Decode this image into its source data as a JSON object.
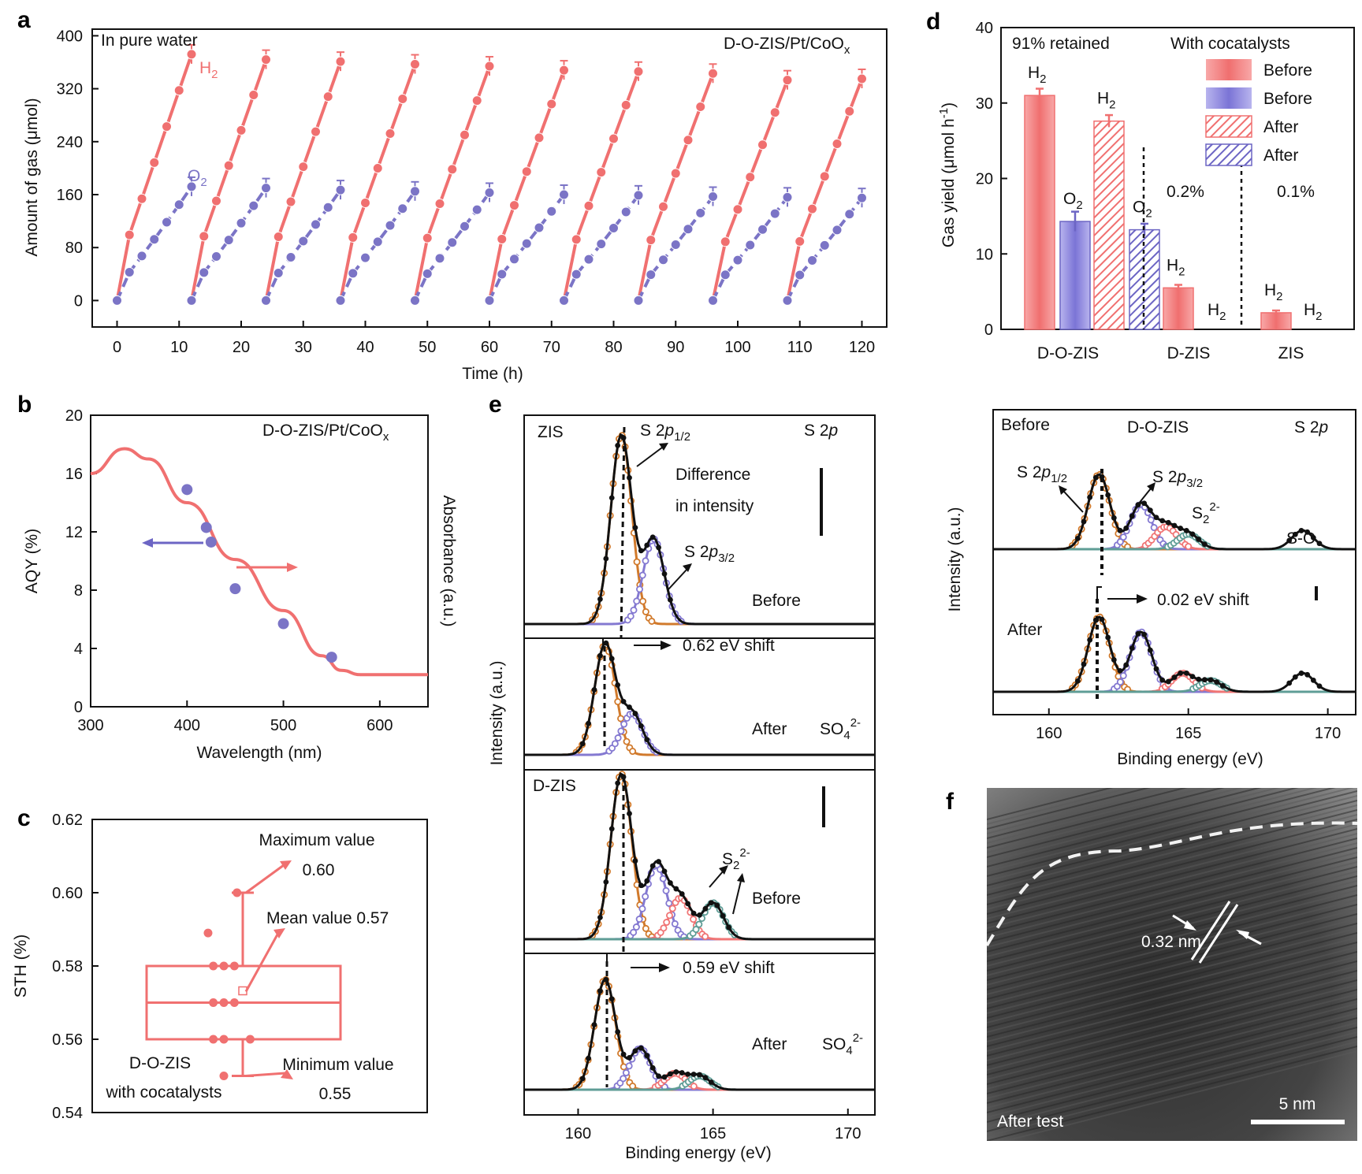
{
  "panel_labels": {
    "a": "a",
    "b": "b",
    "c": "c",
    "d": "d",
    "e": "e",
    "f": "f"
  },
  "colors": {
    "h2": "#f07070",
    "o2": "#7b74c6",
    "fit_s12": "#d17a2c",
    "fit_s32": "#8479d1",
    "fit_s22": "#f07575",
    "fit_so": "#5f9d96",
    "raw": "#111111",
    "tem_bg": "#3a3a3a"
  },
  "chart_data": [
    {
      "id": "a",
      "type": "line",
      "title_left": "In pure water",
      "title_right": "D-O-ZIS/Pt/CoO",
      "title_right_sub": "x",
      "xlabel": "Time (h)",
      "ylabel": "Amount of gas (μmol)",
      "xlim": [
        -4,
        124
      ],
      "ylim": [
        -40,
        410
      ],
      "xticks": [
        0,
        10,
        20,
        30,
        40,
        50,
        60,
        70,
        80,
        90,
        100,
        110,
        120
      ],
      "yticks": [
        0,
        80,
        160,
        240,
        320,
        400
      ],
      "cycle_hours": 12,
      "cycles": 10,
      "cycle_x": [
        0,
        2,
        4,
        6,
        8,
        10,
        12
      ],
      "series": [
        {
          "name": "H",
          "sub": "2",
          "key": "h2",
          "style": "solid",
          "end_values": [
            372,
            364,
            361,
            357,
            354,
            348,
            346,
            343,
            333,
            335
          ]
        },
        {
          "name": "O",
          "sub": "2",
          "key": "o2",
          "style": "dashed",
          "end_values": [
            172,
            170,
            167,
            165,
            163,
            160,
            159,
            157,
            156,
            155
          ]
        }
      ]
    },
    {
      "id": "b",
      "type": "scatter+line",
      "title": "D-O-ZIS/Pt/CoO",
      "title_sub": "x",
      "xlabel": "Wavelength (nm)",
      "ylabel_left": "AQY (%)",
      "ylabel_right": "Absorbance (a.u.)",
      "xlim": [
        300,
        650
      ],
      "ylim": [
        0,
        20
      ],
      "xticks": [
        300,
        400,
        500,
        600
      ],
      "yticks": [
        0,
        4,
        8,
        12,
        16,
        20
      ],
      "points": {
        "x": [
          400,
          420,
          425,
          450,
          500,
          550
        ],
        "y": [
          14.9,
          12.3,
          11.3,
          8.1,
          5.7,
          3.4
        ]
      },
      "absorbance_curve": {
        "x": [
          300,
          335,
          360,
          400,
          450,
          500,
          540,
          560,
          580,
          600,
          650
        ],
        "y": [
          16,
          17.7,
          17,
          14,
          10.1,
          6.6,
          3.5,
          2.5,
          2.2,
          2.2,
          2.2
        ]
      }
    },
    {
      "id": "c",
      "type": "box",
      "ylabel": "STH (%)",
      "ylim": [
        0.54,
        0.62
      ],
      "yticks": [
        0.54,
        0.56,
        0.58,
        0.6,
        0.62
      ],
      "q1": 0.56,
      "median": 0.57,
      "q3": 0.58,
      "mean": 0.57,
      "min": 0.55,
      "max": 0.6,
      "points": [
        {
          "x": 0.94,
          "y": 0.589
        },
        {
          "x": 0.96,
          "y": 0.58
        },
        {
          "x": 1.0,
          "y": 0.58
        },
        {
          "x": 1.04,
          "y": 0.58
        },
        {
          "x": 0.96,
          "y": 0.57
        },
        {
          "x": 1.0,
          "y": 0.57
        },
        {
          "x": 1.04,
          "y": 0.57
        },
        {
          "x": 0.96,
          "y": 0.56
        },
        {
          "x": 1.0,
          "y": 0.56
        },
        {
          "x": 1.1,
          "y": 0.56
        },
        {
          "x": 1.05,
          "y": 0.6
        },
        {
          "x": 1.0,
          "y": 0.55
        }
      ],
      "annotations": {
        "max_label": "Maximum value",
        "max_value": "0.60",
        "mean_label": "Mean value 0.57",
        "min_label": "Minimum value",
        "min_value": "0.55"
      },
      "legend_line1": "D-O-ZIS",
      "legend_line2": "with cocatalysts"
    },
    {
      "id": "d",
      "type": "bar",
      "ylabel": "Gas yield (μmol h",
      "ylabel_sup": "-1",
      "ylabel_end": ")",
      "ylim": [
        0,
        40
      ],
      "yticks": [
        0,
        10,
        20,
        30,
        40
      ],
      "categories": [
        "D-O-ZIS",
        "D-ZIS",
        "ZIS"
      ],
      "bars": [
        {
          "cat": "D-O-ZIS",
          "gas": "H",
          "state": "Before",
          "value": 31.0,
          "err": 0.9
        },
        {
          "cat": "D-O-ZIS",
          "gas": "O",
          "state": "Before",
          "value": 14.3,
          "err": 1.3
        },
        {
          "cat": "D-O-ZIS",
          "gas": "H",
          "state": "After",
          "value": 27.6,
          "err": 0.8
        },
        {
          "cat": "D-O-ZIS",
          "gas": "O",
          "state": "After",
          "value": 13.2,
          "err": 0.8
        },
        {
          "cat": "D-ZIS",
          "gas": "H",
          "state": "Before",
          "value": 5.5,
          "err": 0.4
        },
        {
          "cat": "D-ZIS",
          "gas": "H",
          "state": "Before",
          "value": 0
        },
        {
          "cat": "ZIS",
          "gas": "H",
          "state": "Before",
          "value": 2.2,
          "err": 0.3
        },
        {
          "cat": "ZIS",
          "gas": "H",
          "state": "Before",
          "value": 0
        }
      ],
      "annotations": {
        "retained": "91% retained",
        "dzis_pct": "0.2%",
        "zis_pct": "0.1%"
      },
      "legend_title": "With cocatalysts",
      "legend": [
        "Before",
        "Before",
        "After",
        "After"
      ]
    },
    {
      "id": "e",
      "type": "xps",
      "xlabel": "Binding energy (eV)",
      "ylabel": "Intensity (a.u.)",
      "xlim": [
        158,
        171
      ],
      "xticks": [
        160,
        165,
        170
      ],
      "labels": {
        "zis": "ZIS",
        "dzis": "D-ZIS",
        "s2p": "S 2",
        "s2p_it": "p",
        "s2p12": "S 2",
        "s2p12_it": "p",
        "s2p12_sub": "1/2",
        "s2p32": "S 2",
        "s2p32_it": "p",
        "s2p32_sub": "3/2",
        "diff1": "Difference",
        "diff2": "in intensity",
        "shift1": "0.62 eV shift",
        "shift2": "0.59 eV shift",
        "before": "Before",
        "after": "After",
        "so4": "SO",
        "so4_sub": "4",
        "so4_sup": "2-",
        "s22": "S",
        "s22_sub": "2",
        "s22_sup": "2-"
      },
      "spectra": [
        {
          "sample": "ZIS",
          "state": "Before",
          "peaks": [
            {
              "c": 161.6,
              "h": 1.0
            },
            {
              "c": 162.8,
              "h": 0.45
            }
          ]
        },
        {
          "sample": "ZIS",
          "state": "After",
          "peaks": [
            {
              "c": 161.0,
              "h": 0.8
            },
            {
              "c": 162.0,
              "h": 0.3
            }
          ]
        },
        {
          "sample": "D-ZIS",
          "state": "Before",
          "peaks": [
            {
              "c": 161.6,
              "h": 1.0
            },
            {
              "c": 162.9,
              "h": 0.45
            },
            {
              "c": 163.8,
              "h": 0.25
            },
            {
              "c": 165.0,
              "h": 0.22
            }
          ]
        },
        {
          "sample": "D-ZIS",
          "state": "After",
          "peaks": [
            {
              "c": 161.0,
              "h": 0.8
            },
            {
              "c": 162.3,
              "h": 0.3
            },
            {
              "c": 163.6,
              "h": 0.12
            },
            {
              "c": 164.5,
              "h": 0.1
            }
          ]
        }
      ]
    },
    {
      "id": "d2",
      "type": "xps",
      "xlabel": "Binding energy (eV)",
      "ylabel": "Intensity (a.u.)",
      "xlim": [
        158,
        171
      ],
      "xticks": [
        160,
        165,
        170
      ],
      "labels": {
        "before": "Before",
        "after": "After",
        "sample": "D-O-ZIS",
        "s2p": "S 2",
        "s2p_it": "p",
        "s2p12": "S 2",
        "s2p12_it": "p",
        "s2p12_sub": "1/2",
        "s2p32": "S 2",
        "s2p32_it": "p",
        "s2p32_sub": "3/2",
        "s22": "S",
        "s22_sub": "2",
        "s22_sup": "2-",
        "so": "S-O",
        "shift": "0.02 eV shift"
      },
      "spectra": [
        {
          "state": "Before",
          "peaks": [
            {
              "c": 161.8,
              "h": 1.0
            },
            {
              "c": 163.3,
              "h": 0.6
            },
            {
              "c": 164.2,
              "h": 0.3
            },
            {
              "c": 165.0,
              "h": 0.2
            },
            {
              "c": 169.1,
              "h": 0.25
            }
          ]
        },
        {
          "state": "After",
          "peaks": [
            {
              "c": 161.8,
              "h": 1.0
            },
            {
              "c": 163.3,
              "h": 0.8
            },
            {
              "c": 164.8,
              "h": 0.25
            },
            {
              "c": 165.8,
              "h": 0.15
            },
            {
              "c": 169.1,
              "h": 0.25
            }
          ]
        }
      ]
    }
  ],
  "tem": {
    "lattice": "0.32 nm",
    "scale": "5 nm",
    "caption": "After test"
  }
}
